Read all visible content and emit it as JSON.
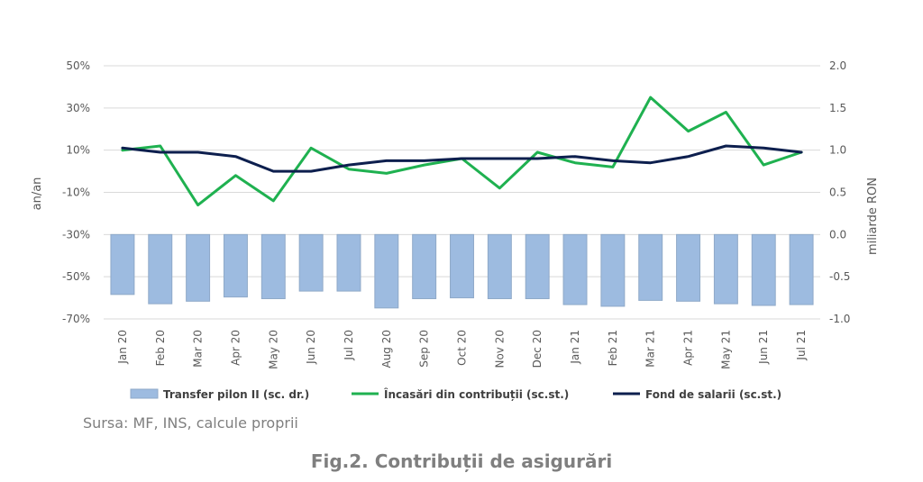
{
  "chart_data": {
    "type": "bar+line",
    "categories": [
      "Jan 20",
      "Feb 20",
      "Mar 20",
      "Apr 20",
      "May 20",
      "Jun 20",
      "Jul 20",
      "Aug 20",
      "Sep 20",
      "Oct 20",
      "Nov 20",
      "Dec 20",
      "Jan 21",
      "Feb 21",
      "Mar 21",
      "Apr 21",
      "May 21",
      "Jun 21",
      "Jul 21"
    ],
    "ylabel_left": "an/an",
    "ylabel_right": "miliarde RON",
    "left_axis": {
      "min": -70,
      "max": 50,
      "step": 20,
      "unit": "%"
    },
    "right_axis": {
      "min": -1.0,
      "max": 2.0,
      "step": 0.5
    },
    "grid": true,
    "legend_position": "bottom",
    "series": [
      {
        "name": "Transfer pilon II (sc. dr.)",
        "type": "bar",
        "axis": "right",
        "color": "#9dbbe0",
        "stroke": "#8fa9c8",
        "values": [
          -0.71,
          -0.82,
          -0.79,
          -0.74,
          -0.76,
          -0.67,
          -0.67,
          -0.87,
          -0.76,
          -0.75,
          -0.76,
          -0.76,
          -0.83,
          -0.85,
          -0.78,
          -0.79,
          -0.82,
          -0.84,
          -0.83
        ]
      },
      {
        "name": "Încasări din contribuții (sc.st.)",
        "type": "line",
        "axis": "left",
        "color": "#1fb150",
        "values": [
          10,
          12,
          -16,
          -2,
          -14,
          11,
          1,
          -1,
          3,
          6,
          -8,
          9,
          4,
          2,
          35,
          19,
          28,
          3,
          9
        ]
      },
      {
        "name": "Fond de salarii (sc.st.)",
        "type": "line",
        "axis": "left",
        "color": "#0d1f4e",
        "values": [
          11,
          9,
          9,
          7,
          0,
          0,
          3,
          5,
          5,
          6,
          6,
          6,
          7,
          5,
          4,
          7,
          12,
          11,
          9
        ]
      }
    ]
  },
  "source_text": "Sursa: MF, INS, calcule proprii",
  "caption_text": "Fig.2. Contribuții de asigurări"
}
